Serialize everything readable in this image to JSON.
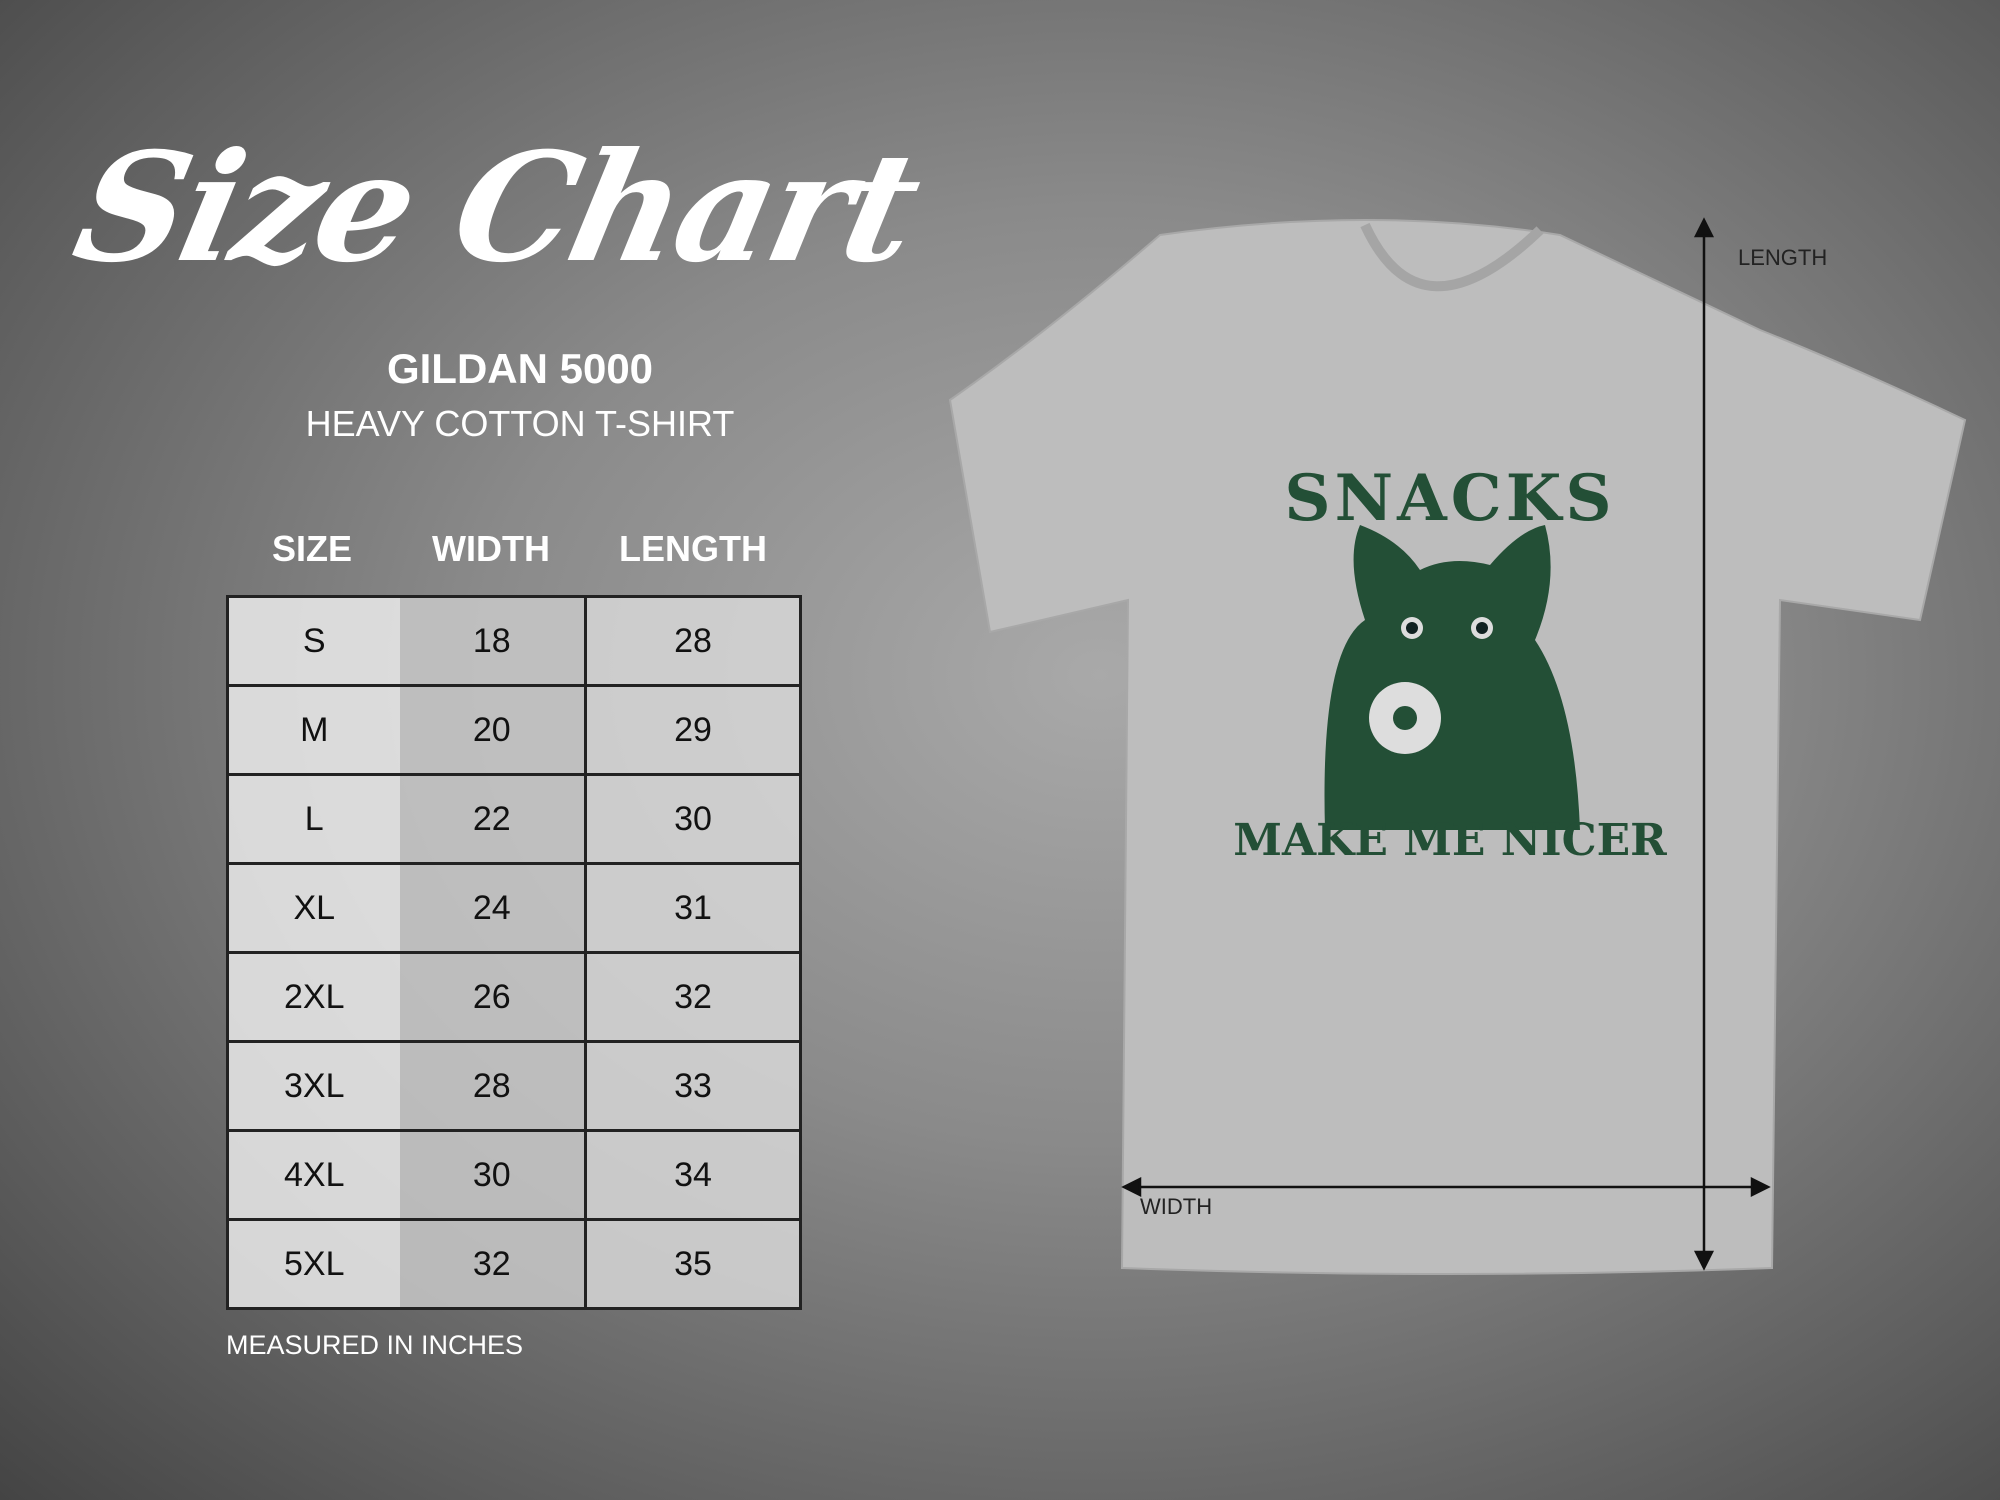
{
  "title": "Size Chart",
  "brand": "GILDAN 5000",
  "model": "HEAVY COTTON T-SHIRT",
  "table": {
    "headers": [
      "SIZE",
      "WIDTH",
      "LENGTH"
    ],
    "rows": [
      [
        "S",
        "18",
        "28"
      ],
      [
        "M",
        "20",
        "29"
      ],
      [
        "L",
        "22",
        "30"
      ],
      [
        "XL",
        "24",
        "31"
      ],
      [
        "2XL",
        "26",
        "32"
      ],
      [
        "3XL",
        "28",
        "33"
      ],
      [
        "4XL",
        "30",
        "34"
      ],
      [
        "5XL",
        "32",
        "35"
      ]
    ]
  },
  "note": "MEASURED IN INCHES",
  "shirt": {
    "color": "#bdbdbd",
    "print_color": "#234f36",
    "print_top": "SNACKS",
    "print_bottom": "MAKE ME NICER",
    "length_label": "LENGTH",
    "width_label": "WIDTH"
  }
}
